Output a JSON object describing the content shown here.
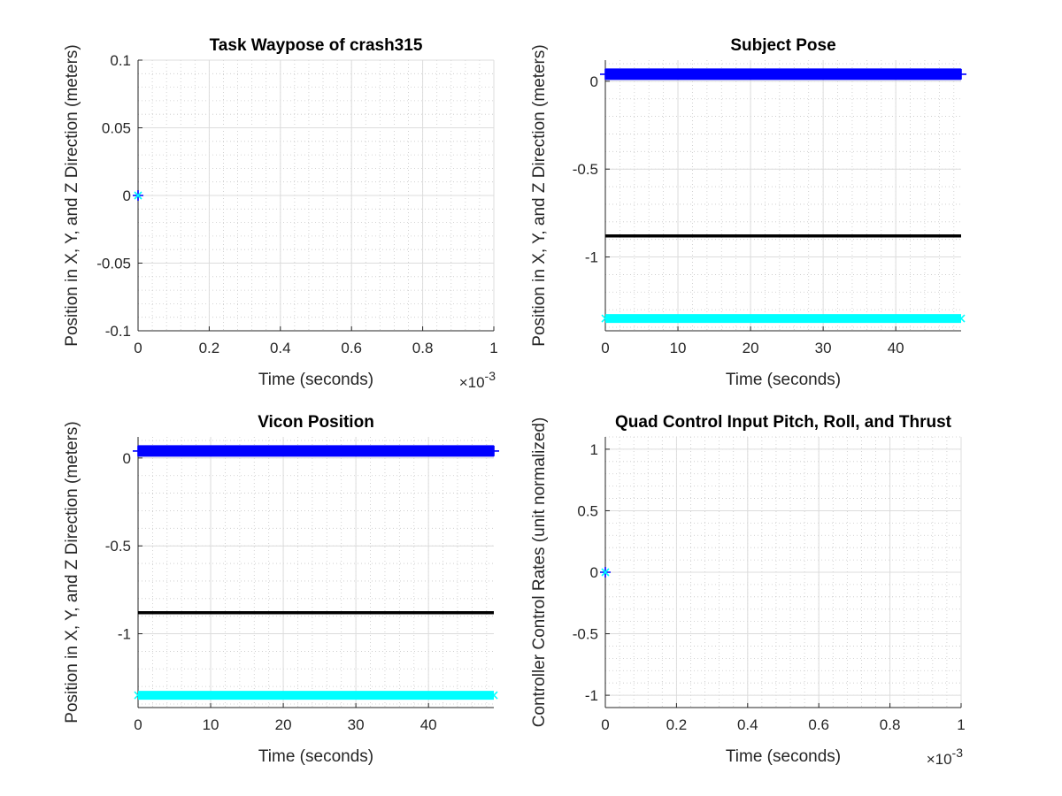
{
  "chart_data": [
    {
      "type": "line",
      "title": "Task Waypose of crash315",
      "xlabel": "Time (seconds)",
      "ylabel": "Position in X, Y, and Z Direction (meters)",
      "xlim": [
        0,
        1
      ],
      "ylim": [
        -0.1,
        0.1
      ],
      "x_exponent_label": "×10",
      "x_exponent": "-3",
      "x_ticks": [
        0,
        0.2,
        0.4,
        0.6,
        0.8,
        1
      ],
      "x_tick_labels": [
        "0",
        "0.2",
        "0.4",
        "0.6",
        "0.8",
        "1"
      ],
      "y_ticks": [
        -0.1,
        -0.05,
        0,
        0.05,
        0.1
      ],
      "y_tick_labels": [
        "-0.1",
        "-0.05",
        "0",
        "0.05",
        "0.1"
      ],
      "grid": true,
      "minor_grid": true,
      "series": [
        {
          "marker": "+",
          "color": "#0000ff",
          "x": [
            0
          ],
          "y": [
            0
          ]
        },
        {
          "marker": "x",
          "color": "#00ffff",
          "x": [
            0
          ],
          "y": [
            0
          ]
        }
      ]
    },
    {
      "type": "line",
      "title": "Subject Pose",
      "xlabel": "Time (seconds)",
      "ylabel": "Position in X, Y, and Z Direction (meters)",
      "xlim": [
        0,
        49
      ],
      "ylim": [
        -1.42,
        0.12
      ],
      "x_ticks": [
        0,
        10,
        20,
        30,
        40
      ],
      "x_tick_labels": [
        "0",
        "10",
        "20",
        "30",
        "40"
      ],
      "y_ticks": [
        -1,
        -0.5,
        0
      ],
      "y_tick_labels": [
        "-1",
        "-0.5",
        "0"
      ],
      "grid": true,
      "minor_grid": true,
      "series": [
        {
          "marker": "+",
          "color": "#0000ff",
          "x": [
            0,
            49
          ],
          "y": [
            0.04,
            0.04
          ]
        },
        {
          "marker": "none",
          "color": "#000000",
          "x": [
            0,
            49
          ],
          "y": [
            -0.88,
            -0.88
          ]
        },
        {
          "marker": "x",
          "color": "#00ffff",
          "x": [
            0,
            49
          ],
          "y": [
            -1.35,
            -1.35
          ]
        }
      ]
    },
    {
      "type": "line",
      "title": "Vicon Position",
      "xlabel": "Time (seconds)",
      "ylabel": "Position in X, Y, and Z Direction (meters)",
      "xlim": [
        0,
        49
      ],
      "ylim": [
        -1.42,
        0.12
      ],
      "x_ticks": [
        0,
        10,
        20,
        30,
        40
      ],
      "x_tick_labels": [
        "0",
        "10",
        "20",
        "30",
        "40"
      ],
      "y_ticks": [
        -1,
        -0.5,
        0
      ],
      "y_tick_labels": [
        "-1",
        "-0.5",
        "0"
      ],
      "grid": true,
      "minor_grid": true,
      "series": [
        {
          "marker": "+",
          "color": "#0000ff",
          "x": [
            0,
            49
          ],
          "y": [
            0.04,
            0.04
          ]
        },
        {
          "marker": "none",
          "color": "#000000",
          "x": [
            0,
            49
          ],
          "y": [
            -0.88,
            -0.88
          ]
        },
        {
          "marker": "x",
          "color": "#00ffff",
          "x": [
            0,
            49
          ],
          "y": [
            -1.35,
            -1.35
          ]
        }
      ]
    },
    {
      "type": "line",
      "title": "Quad Control Input Pitch, Roll, and Thrust",
      "xlabel": "Time (seconds)",
      "ylabel": "Controller Control Rates (unit normalized)",
      "xlim": [
        0,
        1
      ],
      "ylim": [
        -1.1,
        1.1
      ],
      "x_exponent_label": "×10",
      "x_exponent": "-3",
      "x_ticks": [
        0,
        0.2,
        0.4,
        0.6,
        0.8,
        1
      ],
      "x_tick_labels": [
        "0",
        "0.2",
        "0.4",
        "0.6",
        "0.8",
        "1"
      ],
      "y_ticks": [
        -1,
        -0.5,
        0,
        0.5,
        1
      ],
      "y_tick_labels": [
        "-1",
        "-0.5",
        "0",
        "0.5",
        "1"
      ],
      "grid": true,
      "minor_grid": true,
      "series": [
        {
          "marker": "+",
          "color": "#0000ff",
          "x": [
            0
          ],
          "y": [
            0
          ]
        },
        {
          "marker": "x",
          "color": "#00ffff",
          "x": [
            0
          ],
          "y": [
            0
          ]
        }
      ]
    }
  ]
}
